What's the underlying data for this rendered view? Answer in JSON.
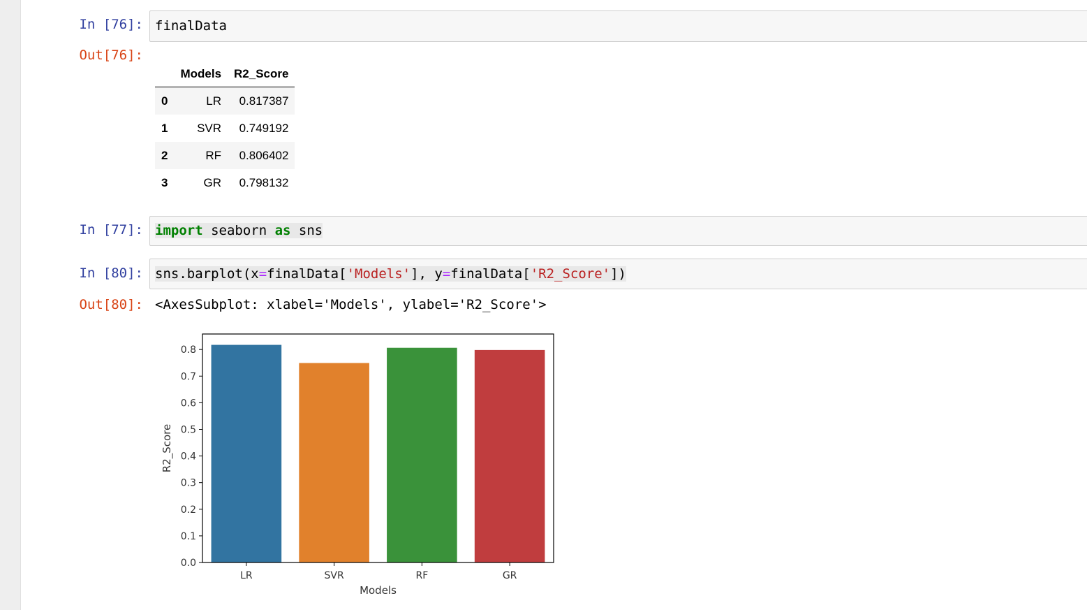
{
  "cells": {
    "c76": {
      "in_prompt": "In [76]:",
      "code": "finalData",
      "out_prompt": "Out[76]:"
    },
    "c77": {
      "in_prompt": "In [77]:",
      "kw1": "import",
      "mod": " seaborn ",
      "kw2": "as",
      "alias": " sns"
    },
    "c80": {
      "in_prompt": "In [80]:",
      "p1": "sns.barplot(x",
      "eq1": "=",
      "p2": "finalData[",
      "s1": "'Models'",
      "p3": "], y",
      "eq2": "=",
      "p4": "finalData[",
      "s2": "'R2_Score'",
      "p5": "])",
      "out_prompt": "Out[80]:",
      "out_text": "<AxesSubplot: xlabel='Models', ylabel='R2_Score'>"
    }
  },
  "dataframe": {
    "columns": [
      "Models",
      "R2_Score"
    ],
    "rows": [
      {
        "index": "0",
        "model": "LR",
        "score": "0.817387"
      },
      {
        "index": "1",
        "model": "SVR",
        "score": "0.749192"
      },
      {
        "index": "2",
        "model": "RF",
        "score": "0.806402"
      },
      {
        "index": "3",
        "model": "GR",
        "score": "0.798132"
      }
    ]
  },
  "chart_data": {
    "type": "bar",
    "categories": [
      "LR",
      "SVR",
      "RF",
      "GR"
    ],
    "values": [
      0.817387,
      0.749192,
      0.806402,
      0.798132
    ],
    "colors": [
      "#3274a1",
      "#e1812c",
      "#3a923a",
      "#c03d3e"
    ],
    "xlabel": "Models",
    "ylabel": "R2_Score",
    "ylim": [
      0,
      0.8582
    ],
    "yticks": [
      "0.0",
      "0.1",
      "0.2",
      "0.3",
      "0.4",
      "0.5",
      "0.6",
      "0.7",
      "0.8"
    ],
    "grid": false
  }
}
